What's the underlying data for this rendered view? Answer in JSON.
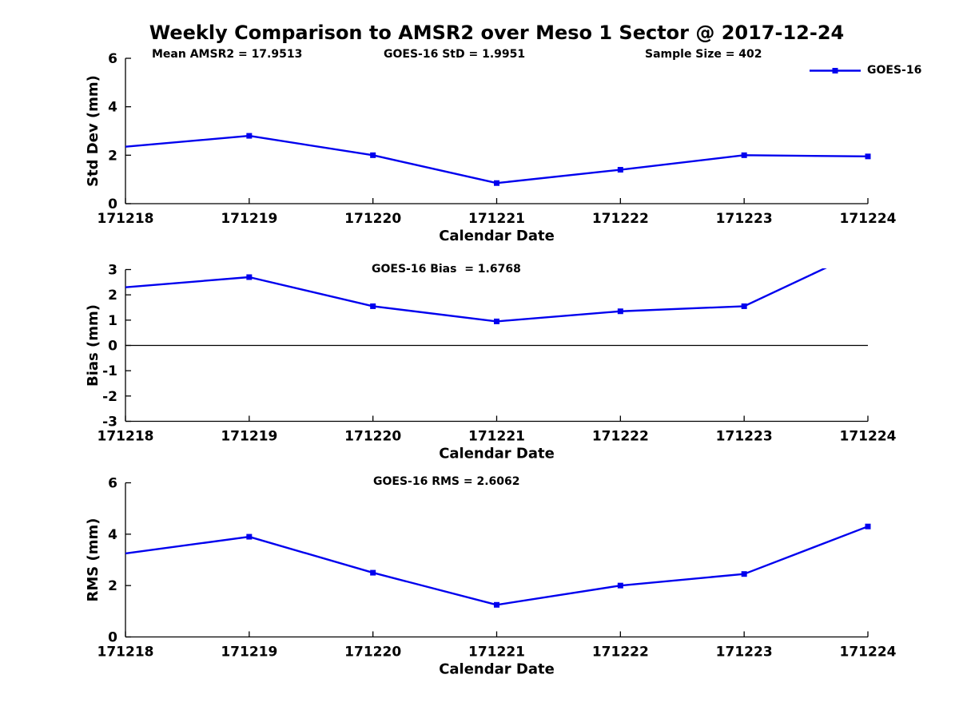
{
  "title": "Weekly Comparison to AMSR2 over Meso 1 Sector @ 2017-12-24",
  "accent_color": "#0000EE",
  "chart_data": [
    {
      "type": "line",
      "ylabel": "Std Dev (mm)",
      "xlabel": "Calendar Date",
      "x_categories": [
        "171218",
        "171219",
        "171220",
        "171221",
        "171222",
        "171223",
        "171224"
      ],
      "series": [
        {
          "name": "GOES-16",
          "color": "#0000EE",
          "marker": "filled-square",
          "values": [
            2.35,
            2.8,
            2.0,
            0.85,
            1.4,
            2.0,
            1.95
          ]
        }
      ],
      "ylim": [
        0,
        6
      ],
      "yticks": [
        0,
        2,
        4,
        6
      ],
      "grid": false,
      "zero_line": false,
      "clip_markers": false,
      "legend": {
        "label": "GOES-16",
        "position": "top-right"
      },
      "annotations": [
        {
          "text": "Mean AMSR2 = 17.9513"
        },
        {
          "text": "GOES-16 StD = 1.9951"
        },
        {
          "text": "Sample Size = 402"
        }
      ]
    },
    {
      "type": "line",
      "ylabel": "Bias (mm)",
      "xlabel": "Calendar Date",
      "x_categories": [
        "171218",
        "171219",
        "171220",
        "171221",
        "171222",
        "171223",
        "171224"
      ],
      "series": [
        {
          "name": "GOES-16",
          "color": "#0000EE",
          "marker": "filled-square",
          "values": [
            2.3,
            2.7,
            1.55,
            0.95,
            1.35,
            1.55,
            3.85
          ]
        }
      ],
      "ylim": [
        -3,
        3
      ],
      "yticks": [
        -3,
        -2,
        -1,
        0,
        1,
        2,
        3
      ],
      "grid": false,
      "zero_line": true,
      "clip_markers": true,
      "last_point_clipped_at_ylim": true,
      "annotations": [
        {
          "text": "GOES-16 Bias  = 1.6768"
        }
      ]
    },
    {
      "type": "line",
      "ylabel": "RMS (mm)",
      "xlabel": "Calendar Date",
      "x_categories": [
        "171218",
        "171219",
        "171220",
        "171221",
        "171222",
        "171223",
        "171224"
      ],
      "series": [
        {
          "name": "GOES-16",
          "color": "#0000EE",
          "marker": "filled-square",
          "values": [
            3.25,
            3.9,
            2.5,
            1.25,
            2.0,
            2.45,
            4.3
          ]
        }
      ],
      "ylim": [
        0,
        6
      ],
      "yticks": [
        0,
        2,
        4,
        6
      ],
      "grid": false,
      "zero_line": false,
      "clip_markers": false,
      "annotations": [
        {
          "text": "GOES-16 RMS = 2.6062"
        }
      ]
    }
  ]
}
